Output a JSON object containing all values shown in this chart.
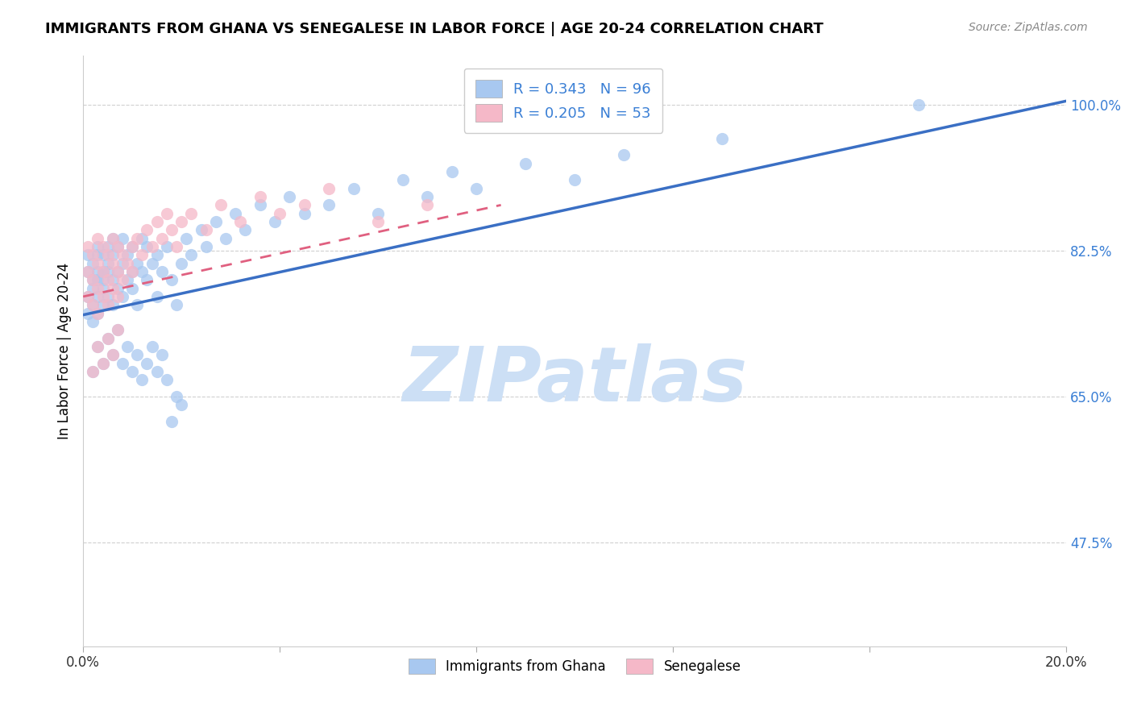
{
  "title": "IMMIGRANTS FROM GHANA VS SENEGALESE IN LABOR FORCE | AGE 20-24 CORRELATION CHART",
  "source": "Source: ZipAtlas.com",
  "ylabel": "In Labor Force | Age 20-24",
  "legend_label1": "Immigrants from Ghana",
  "legend_label2": "Senegalese",
  "r1": 0.343,
  "n1": 96,
  "r2": 0.205,
  "n2": 53,
  "color1": "#a8c8f0",
  "color2": "#f5b8c8",
  "line_color1": "#3a6fc4",
  "line_color2": "#e06080",
  "xlim": [
    0.0,
    0.2
  ],
  "ylim": [
    0.35,
    1.06
  ],
  "xticks": [
    0.0,
    0.04,
    0.08,
    0.12,
    0.16,
    0.2
  ],
  "ytick_positions": [
    0.475,
    0.65,
    0.825,
    1.0
  ],
  "ytick_labels": [
    "47.5%",
    "65.0%",
    "82.5%",
    "100.0%"
  ],
  "xtick_labels": [
    "0.0%",
    "",
    "",
    "",
    "",
    "20.0%"
  ],
  "watermark": "ZIPatlas",
  "watermark_color": "#ccdff5",
  "background_color": "#ffffff",
  "grid_color": "#d0d0d0",
  "ghana_x": [
    0.001,
    0.001,
    0.001,
    0.001,
    0.002,
    0.002,
    0.002,
    0.002,
    0.002,
    0.003,
    0.003,
    0.003,
    0.003,
    0.003,
    0.003,
    0.004,
    0.004,
    0.004,
    0.004,
    0.004,
    0.005,
    0.005,
    0.005,
    0.005,
    0.006,
    0.006,
    0.006,
    0.006,
    0.007,
    0.007,
    0.007,
    0.008,
    0.008,
    0.008,
    0.009,
    0.009,
    0.01,
    0.01,
    0.01,
    0.011,
    0.011,
    0.012,
    0.012,
    0.013,
    0.013,
    0.014,
    0.015,
    0.015,
    0.016,
    0.017,
    0.018,
    0.019,
    0.02,
    0.021,
    0.022,
    0.024,
    0.025,
    0.027,
    0.029,
    0.031,
    0.033,
    0.036,
    0.039,
    0.042,
    0.045,
    0.05,
    0.055,
    0.06,
    0.065,
    0.07,
    0.075,
    0.08,
    0.09,
    0.1,
    0.11,
    0.13,
    0.002,
    0.003,
    0.004,
    0.005,
    0.006,
    0.007,
    0.008,
    0.009,
    0.01,
    0.011,
    0.012,
    0.013,
    0.014,
    0.015,
    0.016,
    0.017,
    0.018,
    0.019,
    0.02,
    0.17
  ],
  "ghana_y": [
    0.8,
    0.82,
    0.77,
    0.75,
    0.78,
    0.81,
    0.76,
    0.74,
    0.79,
    0.83,
    0.8,
    0.77,
    0.75,
    0.82,
    0.79,
    0.78,
    0.8,
    0.76,
    0.82,
    0.79,
    0.81,
    0.77,
    0.8,
    0.83,
    0.79,
    0.82,
    0.76,
    0.84,
    0.8,
    0.83,
    0.78,
    0.81,
    0.77,
    0.84,
    0.79,
    0.82,
    0.8,
    0.83,
    0.78,
    0.81,
    0.76,
    0.8,
    0.84,
    0.79,
    0.83,
    0.81,
    0.77,
    0.82,
    0.8,
    0.83,
    0.79,
    0.76,
    0.81,
    0.84,
    0.82,
    0.85,
    0.83,
    0.86,
    0.84,
    0.87,
    0.85,
    0.88,
    0.86,
    0.89,
    0.87,
    0.88,
    0.9,
    0.87,
    0.91,
    0.89,
    0.92,
    0.9,
    0.93,
    0.91,
    0.94,
    0.96,
    0.68,
    0.71,
    0.69,
    0.72,
    0.7,
    0.73,
    0.69,
    0.71,
    0.68,
    0.7,
    0.67,
    0.69,
    0.71,
    0.68,
    0.7,
    0.67,
    0.62,
    0.65,
    0.64,
    1.0
  ],
  "senegal_x": [
    0.001,
    0.001,
    0.001,
    0.002,
    0.002,
    0.002,
    0.003,
    0.003,
    0.003,
    0.003,
    0.004,
    0.004,
    0.004,
    0.005,
    0.005,
    0.005,
    0.006,
    0.006,
    0.006,
    0.007,
    0.007,
    0.007,
    0.008,
    0.008,
    0.009,
    0.01,
    0.01,
    0.011,
    0.012,
    0.013,
    0.014,
    0.015,
    0.016,
    0.017,
    0.018,
    0.019,
    0.02,
    0.022,
    0.025,
    0.028,
    0.032,
    0.036,
    0.04,
    0.045,
    0.05,
    0.06,
    0.07,
    0.002,
    0.003,
    0.004,
    0.005,
    0.006,
    0.007
  ],
  "senegal_y": [
    0.83,
    0.8,
    0.77,
    0.82,
    0.79,
    0.76,
    0.84,
    0.81,
    0.78,
    0.75,
    0.83,
    0.8,
    0.77,
    0.82,
    0.79,
    0.76,
    0.84,
    0.81,
    0.78,
    0.83,
    0.8,
    0.77,
    0.82,
    0.79,
    0.81,
    0.83,
    0.8,
    0.84,
    0.82,
    0.85,
    0.83,
    0.86,
    0.84,
    0.87,
    0.85,
    0.83,
    0.86,
    0.87,
    0.85,
    0.88,
    0.86,
    0.89,
    0.87,
    0.88,
    0.9,
    0.86,
    0.88,
    0.68,
    0.71,
    0.69,
    0.72,
    0.7,
    0.73
  ],
  "line1_x0": 0.0,
  "line1_y0": 0.748,
  "line1_x1": 0.2,
  "line1_y1": 1.005,
  "line2_x0": 0.0,
  "line2_y0": 0.77,
  "line2_x1": 0.085,
  "line2_y1": 0.88
}
